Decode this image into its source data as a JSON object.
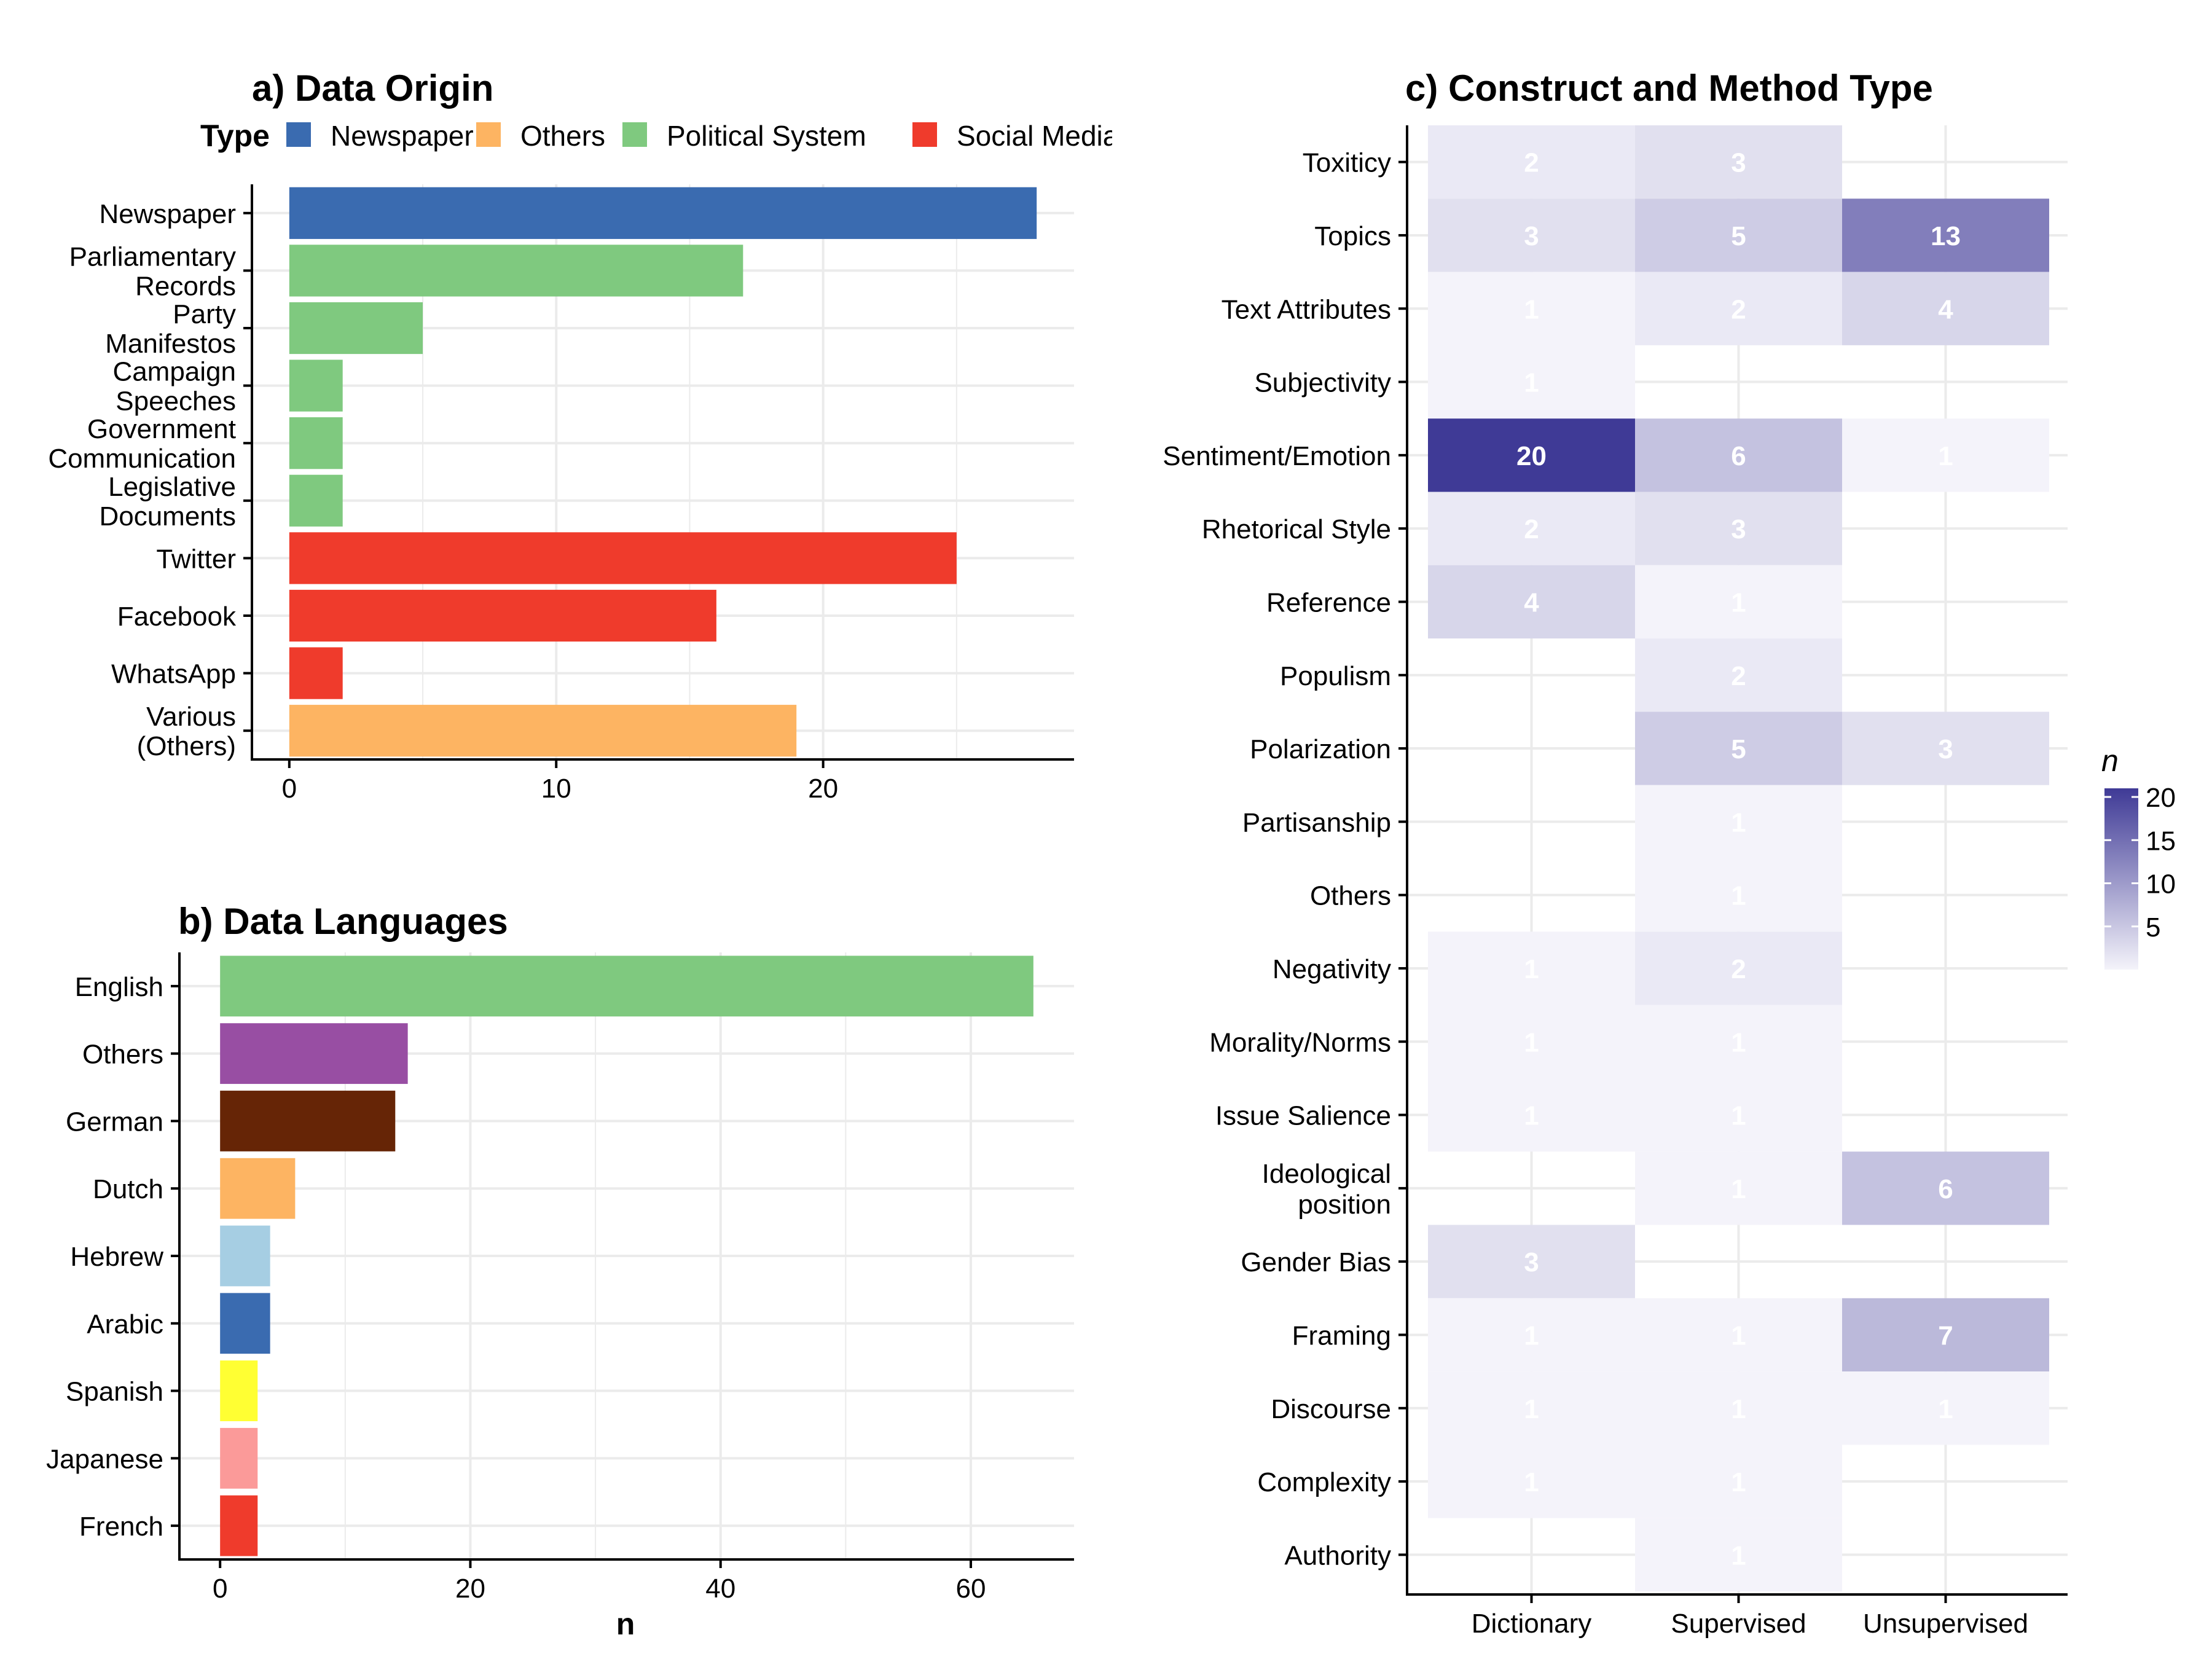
{
  "chart_data": [
    {
      "type": "bar",
      "orientation": "horizontal",
      "title": "a) Data Origin",
      "legend_title": "Type",
      "legend_position": "top",
      "legend": [
        {
          "name": "Newspaper",
          "color": "#3a6bb0"
        },
        {
          "name": "Others",
          "color": "#fdb462"
        },
        {
          "name": "Political System",
          "color": "#7fc97f"
        },
        {
          "name": "Social Media",
          "color": "#ef3b2c"
        }
      ],
      "categories": [
        {
          "lines": [
            "Newspaper"
          ],
          "value": 28,
          "type": "Newspaper"
        },
        {
          "lines": [
            "Parliamentary",
            "Records"
          ],
          "value": 17,
          "type": "Political System"
        },
        {
          "lines": [
            "Party",
            "Manifestos"
          ],
          "value": 5,
          "type": "Political System"
        },
        {
          "lines": [
            "Campaign",
            "Speeches"
          ],
          "value": 2,
          "type": "Political System"
        },
        {
          "lines": [
            "Government",
            "Communication"
          ],
          "value": 2,
          "type": "Political System"
        },
        {
          "lines": [
            "Legislative",
            "Documents"
          ],
          "value": 2,
          "type": "Political System"
        },
        {
          "lines": [
            "Twitter"
          ],
          "value": 25,
          "type": "Social Media"
        },
        {
          "lines": [
            "Facebook"
          ],
          "value": 16,
          "type": "Social Media"
        },
        {
          "lines": [
            "WhatsApp"
          ],
          "value": 2,
          "type": "Social Media"
        },
        {
          "lines": [
            "Various",
            "(Others)"
          ],
          "value": 19,
          "type": "Others"
        }
      ],
      "xlim": [
        -1.4,
        29.4
      ],
      "xticks": [
        0,
        10,
        20
      ],
      "xlabel": "",
      "ylabel": "",
      "grid": true
    },
    {
      "type": "bar",
      "orientation": "horizontal",
      "title": "b) Data Languages",
      "categories": [
        {
          "label": "English",
          "value": 65,
          "color": "#7fc97f"
        },
        {
          "label": "Others",
          "value": 15,
          "color": "#984ea3"
        },
        {
          "label": "German",
          "value": 14,
          "color": "#662506"
        },
        {
          "label": "Dutch",
          "value": 6,
          "color": "#fdb462"
        },
        {
          "label": "Hebrew",
          "value": 4,
          "color": "#a6cee3"
        },
        {
          "label": "Arabic",
          "value": 4,
          "color": "#3a6bb0"
        },
        {
          "label": "Spanish",
          "value": 3,
          "color": "#ffff33"
        },
        {
          "label": "Japanese",
          "value": 3,
          "color": "#fb9a99"
        },
        {
          "label": "French",
          "value": 3,
          "color": "#ef3b2c"
        }
      ],
      "xlim": [
        -3.25,
        68.25
      ],
      "xticks": [
        0,
        20,
        40,
        60
      ],
      "xlabel": "n",
      "ylabel": "",
      "grid": true
    },
    {
      "type": "heatmap",
      "title": "c) Construct and Method Type",
      "x_categories": [
        "Dictionary",
        "Supervised",
        "Unsupervised"
      ],
      "y_categories": [
        {
          "lines": [
            "Toxiticy"
          ]
        },
        {
          "lines": [
            "Topics"
          ]
        },
        {
          "lines": [
            "Text Attributes"
          ]
        },
        {
          "lines": [
            "Subjectivity"
          ]
        },
        {
          "lines": [
            "Sentiment/Emotion"
          ]
        },
        {
          "lines": [
            "Rhetorical Style"
          ]
        },
        {
          "lines": [
            "Reference"
          ]
        },
        {
          "lines": [
            "Populism"
          ]
        },
        {
          "lines": [
            "Polarization"
          ]
        },
        {
          "lines": [
            "Partisanship"
          ]
        },
        {
          "lines": [
            "Others"
          ]
        },
        {
          "lines": [
            "Negativity"
          ]
        },
        {
          "lines": [
            "Morality/Norms"
          ]
        },
        {
          "lines": [
            "Issue Salience"
          ]
        },
        {
          "lines": [
            "Ideological",
            "position"
          ]
        },
        {
          "lines": [
            "Gender Bias"
          ]
        },
        {
          "lines": [
            "Framing"
          ]
        },
        {
          "lines": [
            "Discourse"
          ]
        },
        {
          "lines": [
            "Complexity"
          ]
        },
        {
          "lines": [
            "Authority"
          ]
        }
      ],
      "values": [
        [
          2,
          3,
          null
        ],
        [
          3,
          5,
          13
        ],
        [
          1,
          2,
          4
        ],
        [
          1,
          null,
          null
        ],
        [
          20,
          6,
          1
        ],
        [
          2,
          3,
          null
        ],
        [
          4,
          1,
          null
        ],
        [
          null,
          2,
          null
        ],
        [
          null,
          5,
          3
        ],
        [
          null,
          1,
          null
        ],
        [
          null,
          1,
          null
        ],
        [
          1,
          2,
          null
        ],
        [
          1,
          1,
          null
        ],
        [
          1,
          1,
          null
        ],
        [
          null,
          1,
          6
        ],
        [
          3,
          null,
          null
        ],
        [
          1,
          1,
          7
        ],
        [
          1,
          1,
          1
        ],
        [
          1,
          1,
          null
        ],
        [
          null,
          1,
          null
        ]
      ],
      "legend_title": "n",
      "legend_position": "right",
      "legend_ticks": [
        5,
        10,
        15,
        20
      ],
      "color_range": {
        "low": "#f4f3fa",
        "high": "#3f3a96",
        "min": 1,
        "max": 20
      },
      "grid": true
    }
  ]
}
